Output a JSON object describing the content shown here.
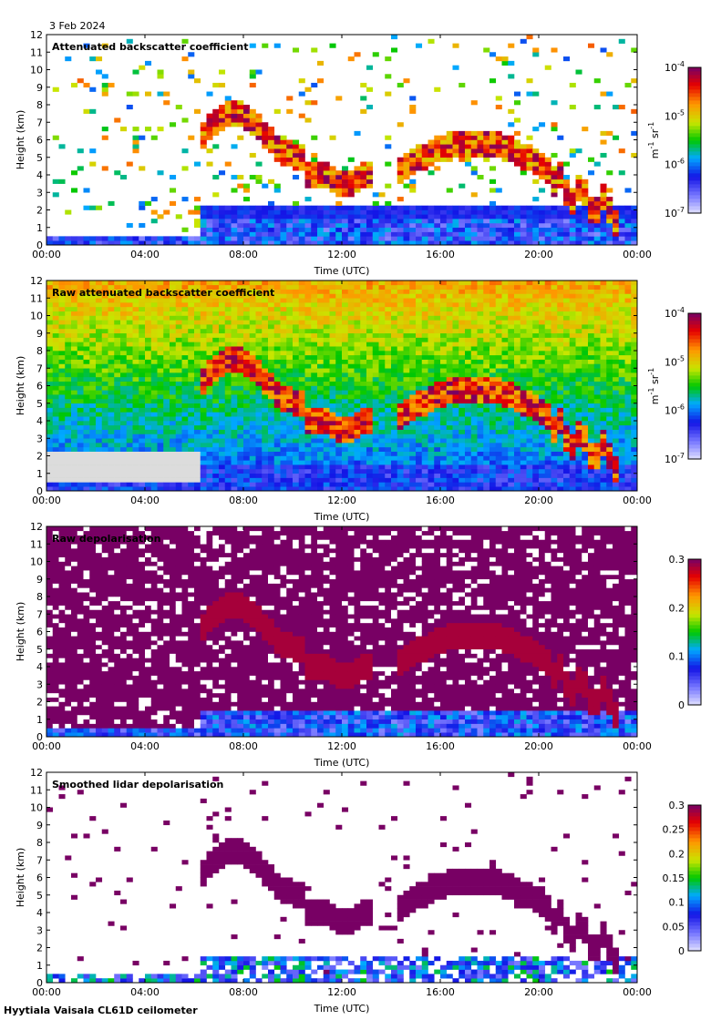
{
  "date_label": "3 Feb 2024",
  "footer": "Hyytiala Vaisala CL61D ceilometer",
  "chart_data": [
    {
      "type": "heatmap",
      "title": "Attenuated backscatter coefficient",
      "xlabel": "Time (UTC)",
      "ylabel": "Height (km)",
      "x_ticks": [
        "00:00",
        "04:00",
        "08:00",
        "12:00",
        "16:00",
        "20:00",
        "00:00"
      ],
      "xlim_hours": [
        0,
        24
      ],
      "ylim": [
        0,
        12
      ],
      "y_ticks": [
        0,
        1,
        2,
        3,
        4,
        5,
        6,
        7,
        8,
        9,
        10,
        11,
        12
      ],
      "colorbar": {
        "scale": "log",
        "range": [
          1e-07,
          0.0001
        ],
        "labels": [
          "10",
          "10",
          "10",
          "10"
        ],
        "exponents": [
          "-7",
          "-6",
          "-5",
          "-4"
        ],
        "unit": "m",
        "unit_exp1": "-1",
        "unit2": " sr",
        "unit_exp2": "-1"
      },
      "style": "sparse"
    },
    {
      "type": "heatmap",
      "title": "Raw attenuated backscatter coefficient",
      "xlabel": "Time (UTC)",
      "ylabel": "Height (km)",
      "x_ticks": [
        "00:00",
        "04:00",
        "08:00",
        "12:00",
        "16:00",
        "20:00",
        "00:00"
      ],
      "xlim_hours": [
        0,
        24
      ],
      "ylim": [
        0,
        12
      ],
      "y_ticks": [
        0,
        1,
        2,
        3,
        4,
        5,
        6,
        7,
        8,
        9,
        10,
        11,
        12
      ],
      "colorbar": {
        "scale": "log",
        "range": [
          1e-07,
          0.0001
        ],
        "labels": [
          "10",
          "10",
          "10",
          "10"
        ],
        "exponents": [
          "-7",
          "-6",
          "-5",
          "-4"
        ],
        "unit": "m",
        "unit_exp1": "-1",
        "unit2": " sr",
        "unit_exp2": "-1"
      },
      "style": "noisy"
    },
    {
      "type": "heatmap",
      "title": "Raw depolarisation",
      "xlabel": "Time (UTC)",
      "ylabel": "Height (km)",
      "x_ticks": [
        "00:00",
        "04:00",
        "08:00",
        "12:00",
        "16:00",
        "20:00",
        "00:00"
      ],
      "xlim_hours": [
        0,
        24
      ],
      "ylim": [
        0,
        12
      ],
      "y_ticks": [
        0,
        1,
        2,
        3,
        4,
        5,
        6,
        7,
        8,
        9,
        10,
        11,
        12
      ],
      "colorbar": {
        "scale": "linear",
        "range": [
          0,
          0.3
        ],
        "labels": [
          "0",
          "0.1",
          "0.2",
          "0.3"
        ]
      },
      "style": "depol_noisy"
    },
    {
      "type": "heatmap",
      "title": "Smoothed lidar depolarisation",
      "xlabel": "Time (UTC)",
      "ylabel": "Height (km)",
      "x_ticks": [
        "00:00",
        "04:00",
        "08:00",
        "12:00",
        "16:00",
        "20:00",
        "00:00"
      ],
      "xlim_hours": [
        0,
        24
      ],
      "ylim": [
        0,
        12
      ],
      "y_ticks": [
        0,
        1,
        2,
        3,
        4,
        5,
        6,
        7,
        8,
        9,
        10,
        11,
        12
      ],
      "colorbar": {
        "scale": "linear",
        "range": [
          0,
          0.3
        ],
        "labels": [
          "0",
          "0.05",
          "0.1",
          "0.15",
          "0.2",
          "0.25",
          "0.3"
        ]
      },
      "style": "depol_sparse"
    }
  ]
}
